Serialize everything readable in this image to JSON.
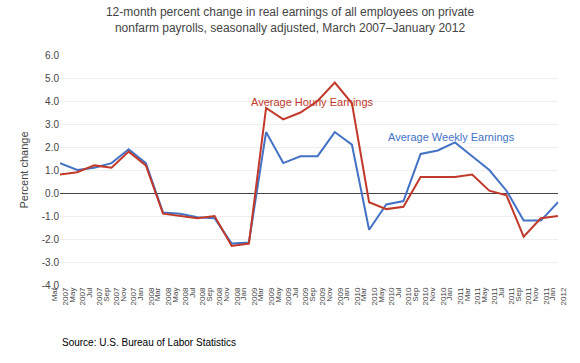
{
  "chart_data": {
    "type": "line",
    "title": "12-month percent change in real earnings of all employees on private\nnonfarm payrolls, seasonally adjusted, March 2007–January 2012",
    "ylabel": "Percent change",
    "source": "Source: U.S. Bureau of Labor Statistics",
    "categories": [
      "Mar\n2007",
      "May\n2007",
      "Jul\n2007",
      "Sep\n2007",
      "Nov\n2007",
      "Jan\n2008",
      "Mar\n2008",
      "May\n2008",
      "Jul\n2008",
      "Sep\n2008",
      "Nov\n2008",
      "Jan\n2009",
      "Mar\n2009",
      "May\n2009",
      "Jul\n2009",
      "Sep\n2009",
      "Nov\n2009",
      "Jan\n2010",
      "Mar\n2010",
      "May\n2010",
      "Jul\n2010",
      "Sep\n2010",
      "Nov\n2010",
      "Jan\n2011",
      "Mar\n2011",
      "May\n2011",
      "Jul\n2011",
      "Sep\n2011",
      "Nov\n2011",
      "Jan\n2012"
    ],
    "series": [
      {
        "color": "#4472C4",
        "values": [
          1.3,
          1.0,
          1.1,
          1.3,
          1.9,
          1.3,
          -0.85,
          -0.9,
          -1.05,
          -1.1,
          -2.2,
          -2.15,
          2.65,
          1.3,
          1.6,
          1.6,
          2.65,
          2.1,
          -1.6,
          -0.5,
          -0.35,
          1.7,
          1.85,
          2.2,
          1.6,
          1.0,
          0.1,
          -1.2,
          -1.2,
          -0.4
        ]
      },
      {
        "color": "#C0392B",
        "values": [
          0.8,
          0.9,
          1.2,
          1.1,
          1.8,
          1.2,
          -0.9,
          -1.0,
          -1.1,
          -1.0,
          -2.3,
          -2.2,
          3.7,
          3.2,
          3.5,
          4.0,
          4.8,
          3.9,
          -0.4,
          -0.7,
          -0.6,
          0.7,
          0.7,
          0.7,
          0.8,
          0.1,
          -0.1,
          -1.9,
          -1.1,
          -1.0
        ]
      }
    ],
    "annotations": [
      {
        "text": "Average Hourly Earnings",
        "x": 11,
        "y": 3.6,
        "color": "#C0392B"
      },
      {
        "text": "Average Weekly Earnings",
        "x": 19,
        "y": 2.1,
        "color": "#4472C4"
      }
    ],
    "ylim": [
      -4.0,
      6.0
    ],
    "yticks": [
      {
        "value": -4.0,
        "label": "-4.0"
      },
      {
        "value": -3.0,
        "label": "-3.0"
      },
      {
        "value": -2.0,
        "label": "-2.0"
      },
      {
        "value": -1.0,
        "label": "-1.0"
      },
      {
        "value": 0.0,
        "label": "0.0"
      },
      {
        "value": 1.0,
        "label": "1.0"
      },
      {
        "value": 2.0,
        "label": "2.0"
      },
      {
        "value": 3.0,
        "label": "3.0"
      },
      {
        "value": 4.0,
        "label": "4.0"
      },
      {
        "value": 5.0,
        "label": "5.0"
      },
      {
        "value": 6.0,
        "label": "6.0"
      }
    ],
    "grid": true
  }
}
